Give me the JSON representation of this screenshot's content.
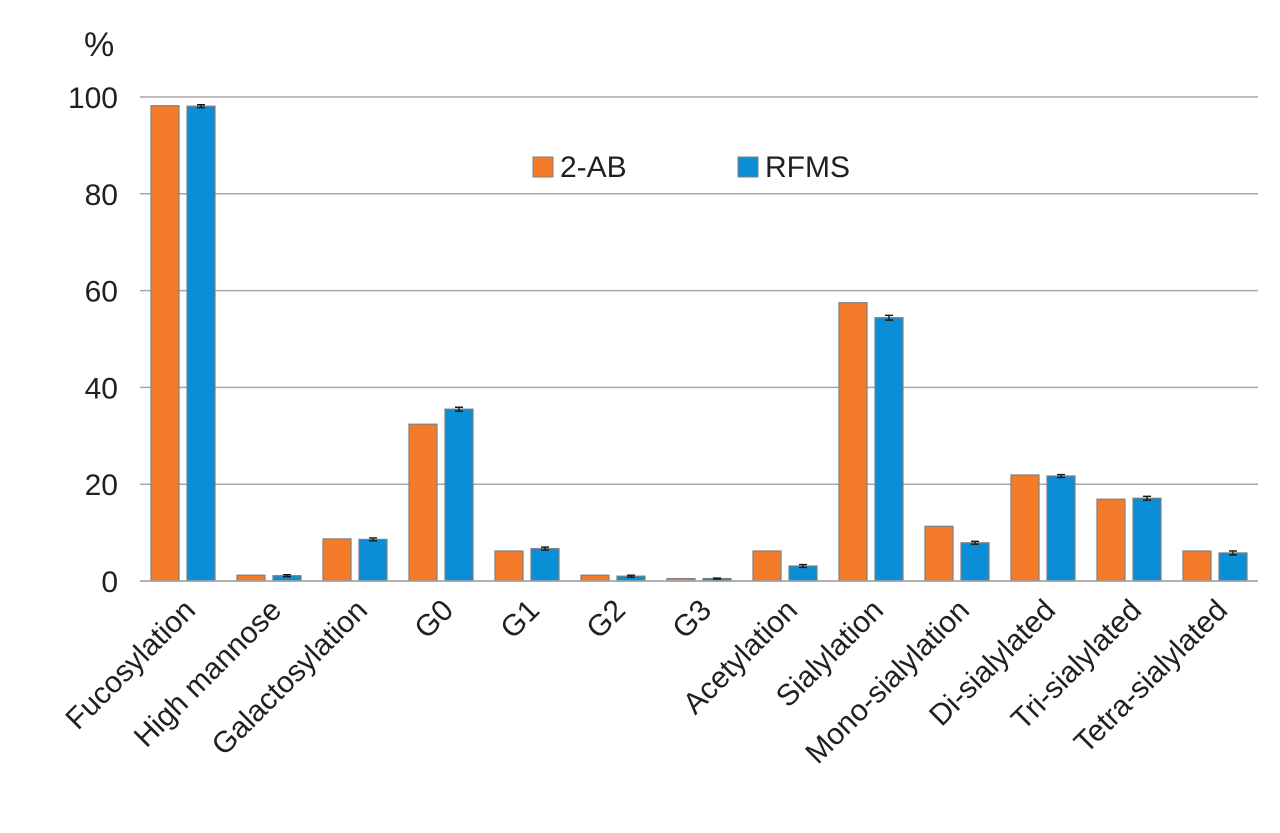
{
  "chart_data": {
    "type": "bar",
    "title": "",
    "xlabel": "",
    "ylabel": "%",
    "ylim": [
      0,
      100
    ],
    "yticks": [
      0,
      20,
      40,
      60,
      80,
      100
    ],
    "grid": true,
    "legend_position": "top-center",
    "categories": [
      "Fucosylation",
      "High mannose",
      "Galactosylation",
      "G0",
      "G1",
      "G2",
      "G3",
      "Acetylation",
      "Sialylation",
      "Mono-sialylation",
      "Di-sialylated",
      "Tri-sialylated",
      "Tetra-sialylated"
    ],
    "series": [
      {
        "name": "2-AB",
        "color": "#f47b2a",
        "values": [
          98.2,
          1.2,
          8.7,
          32.4,
          6.2,
          1.2,
          0.5,
          6.2,
          57.5,
          11.3,
          21.9,
          16.9,
          6.2
        ],
        "errors": [
          0,
          0,
          0,
          0,
          0,
          0,
          0,
          0,
          0,
          0,
          0,
          0,
          0
        ]
      },
      {
        "name": "RFMS",
        "color": "#0a8fd6",
        "values": [
          98.1,
          1.1,
          8.6,
          35.5,
          6.7,
          1.0,
          0.5,
          3.1,
          54.4,
          7.9,
          21.7,
          17.1,
          5.8
        ],
        "errors": [
          0.3,
          0.2,
          0.3,
          0.4,
          0.3,
          0.2,
          0.1,
          0.3,
          0.5,
          0.3,
          0.3,
          0.4,
          0.4
        ]
      }
    ]
  }
}
